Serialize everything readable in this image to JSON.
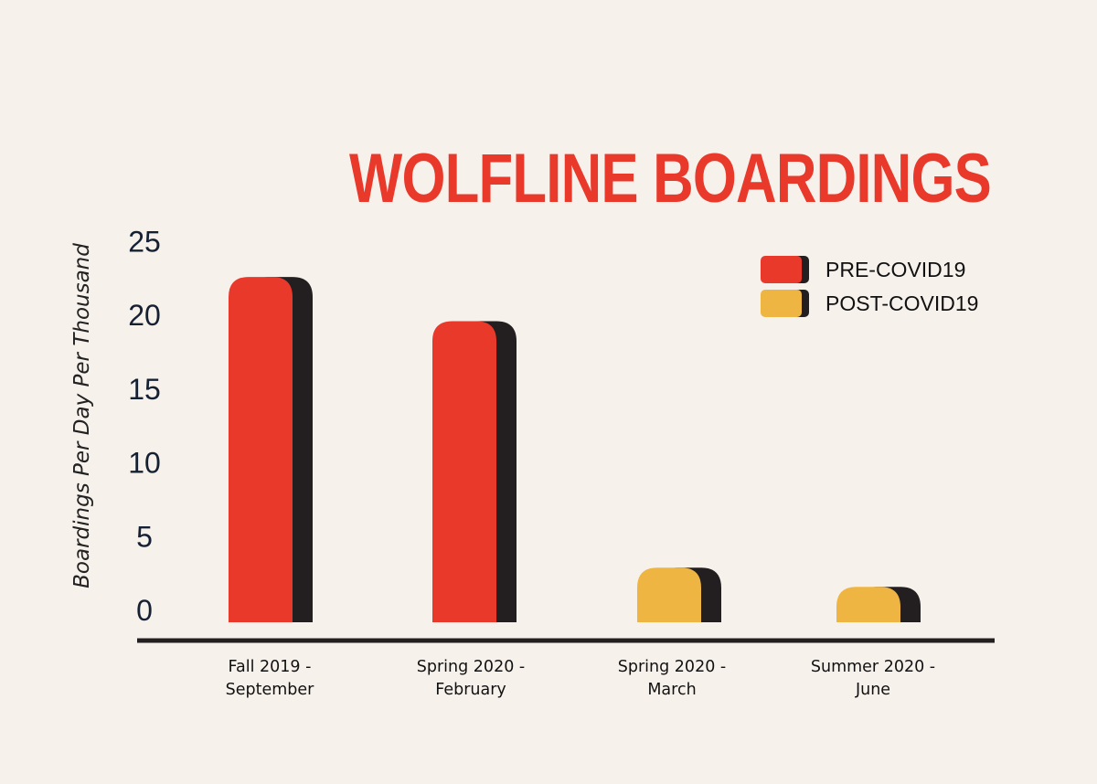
{
  "chart_data": {
    "type": "bar",
    "title": "WOLFLINE BOARDINGS",
    "ylabel": "Boardings Per Day Per Thousand",
    "xlabel": "",
    "ylim": [
      0,
      25
    ],
    "yticks": [
      "0",
      "5",
      "10",
      "15",
      "20",
      "25"
    ],
    "grid": false,
    "legend_position": "top-right",
    "categories": [
      [
        "Fall 2019 -",
        "September"
      ],
      [
        "Spring 2020 -",
        "February"
      ],
      [
        "Spring 2020 -",
        "March"
      ],
      [
        "Summer 2020 -",
        "June"
      ]
    ],
    "values": [
      23.4,
      20.4,
      3.7,
      2.4
    ],
    "bar_series": [
      0,
      0,
      1,
      1
    ],
    "series": [
      {
        "name": "PRE-COVID19",
        "color": "#e8392b"
      },
      {
        "name": "POST-COVID19",
        "color": "#efb543"
      }
    ],
    "shadow_color": "#231f20",
    "axis_color": "#231f20"
  }
}
